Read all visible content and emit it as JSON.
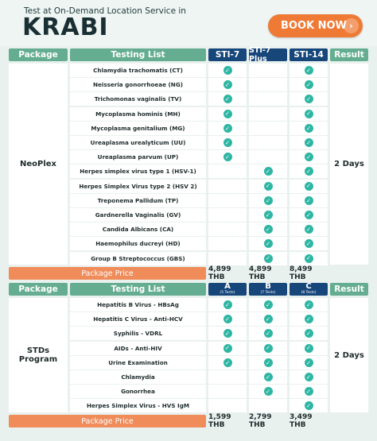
{
  "header": {
    "subtitle": "Test at On-Demand Location Service in",
    "city": "KRABI",
    "book_now": "BOOK NOW",
    "arrow": "›"
  },
  "colors": {
    "green": "#65ad90",
    "navy": "#17467a",
    "orange": "#ef8c5a",
    "check": "#2eb6a3",
    "button": "#ef7a35"
  },
  "section1": {
    "package_header": "Package",
    "testing_header": "Testing List",
    "col1": "STI-7",
    "col2": "STI-7 Plus",
    "col3": "STI-14",
    "result_header": "Result",
    "package_name": "NeoPlex",
    "result": "2 Days",
    "rows": [
      {
        "test": "Chlamydia trachomatis (CT)",
        "c1": true,
        "c2": false,
        "c3": true
      },
      {
        "test": "Neisseria gonorrhoeae (NG)",
        "c1": true,
        "c2": false,
        "c3": true
      },
      {
        "test": "Trichomonas vaginalis (TV)",
        "c1": true,
        "c2": false,
        "c3": true
      },
      {
        "test": "Mycoplasma hominis (MH)",
        "c1": true,
        "c2": false,
        "c3": true
      },
      {
        "test": "Mycoplasma genitalium (MG)",
        "c1": true,
        "c2": false,
        "c3": true
      },
      {
        "test": "Ureaplasma urealyticum (UU)",
        "c1": true,
        "c2": false,
        "c3": true
      },
      {
        "test": "Ureaplasma parvum (UP)",
        "c1": true,
        "c2": false,
        "c3": true
      },
      {
        "test": "Herpes simplex virus type 1 (HSV-1)",
        "c1": false,
        "c2": true,
        "c3": true
      },
      {
        "test": "Herpes Simplex Virus type 2 (HSV 2)",
        "c1": false,
        "c2": true,
        "c3": true
      },
      {
        "test": "Treponema Pallidum (TP)",
        "c1": false,
        "c2": true,
        "c3": true
      },
      {
        "test": "Gardnerella Vaginalis (GV)",
        "c1": false,
        "c2": true,
        "c3": true
      },
      {
        "test": "Candida Albicans (CA)",
        "c1": false,
        "c2": true,
        "c3": true
      },
      {
        "test": "Haemophilus ducreyi (HD)",
        "c1": false,
        "c2": true,
        "c3": true
      },
      {
        "test": "Group B Streptococcus (GBS)",
        "c1": false,
        "c2": true,
        "c3": true
      }
    ],
    "price_label": "Package Price",
    "price1": "4,899 THB",
    "price2": "4,899 THB",
    "price3": "8,499 THB"
  },
  "section2": {
    "package_header": "Package",
    "testing_header": "Testing List",
    "col1": "A",
    "col1_sub": "(5 Tests)",
    "col2": "B",
    "col2_sub": "(7 Tests)",
    "col3": "C",
    "col3_sub": "(8 Tests)",
    "result_header": "Result",
    "package_name": "STDs Program",
    "result": "2 Days",
    "rows": [
      {
        "test": "Hepatitis B Virus - HBsAg",
        "c1": true,
        "c2": true,
        "c3": true
      },
      {
        "test": "Hepatitis C Virus - Anti-HCV",
        "c1": true,
        "c2": true,
        "c3": true
      },
      {
        "test": "Syphilis - VDRL",
        "c1": true,
        "c2": true,
        "c3": true
      },
      {
        "test": "AIDs - Anti-HIV",
        "c1": true,
        "c2": true,
        "c3": true
      },
      {
        "test": "Urine Examination",
        "c1": true,
        "c2": true,
        "c3": true
      },
      {
        "test": "Chlamydia",
        "c1": false,
        "c2": true,
        "c3": true
      },
      {
        "test": "Gonorrhea",
        "c1": false,
        "c2": true,
        "c3": true
      },
      {
        "test": "Herpes Simplex Virus - HVS IgM",
        "c1": false,
        "c2": false,
        "c3": true
      }
    ],
    "price_label": "Package Price",
    "price1": "1,599 THB",
    "price2": "2,799 THB",
    "price3": "3,499 THB"
  }
}
